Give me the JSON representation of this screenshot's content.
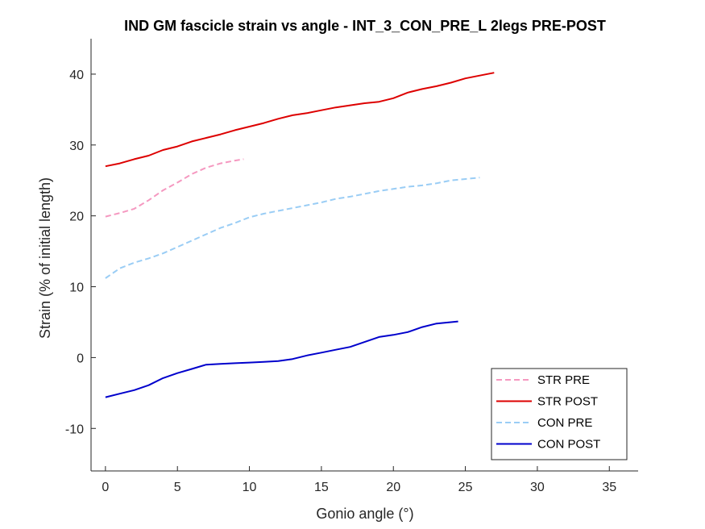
{
  "chart_data": {
    "type": "line",
    "title": "IND GM fascicle strain vs angle - INT_3_CON_PRE_L 2legs PRE-POST",
    "xlabel": "Gonio angle (°)",
    "ylabel": "Strain (% of initial length)",
    "xlim": [
      -1,
      37
    ],
    "ylim": [
      -16,
      45
    ],
    "xticks": [
      0,
      5,
      10,
      15,
      20,
      25,
      30,
      35
    ],
    "yticks": [
      -10,
      0,
      10,
      20,
      30,
      40
    ],
    "grid": false,
    "legend_position": "bottom-right",
    "series": [
      {
        "name": "STR PRE",
        "style": "dashed",
        "color": "#f598c0",
        "x": [
          0,
          1,
          2,
          3,
          4,
          5,
          6,
          7,
          8,
          9,
          9.6
        ],
        "y": [
          19.9,
          20.4,
          21.0,
          22.2,
          23.6,
          24.7,
          25.9,
          26.8,
          27.4,
          27.8,
          28.0
        ]
      },
      {
        "name": "STR POST",
        "style": "solid",
        "color": "#dd0000",
        "x": [
          0,
          1,
          2,
          3,
          4,
          5,
          6,
          7,
          8,
          9,
          10,
          11,
          12,
          13,
          14,
          15,
          16,
          17,
          18,
          19,
          20,
          21,
          22,
          23,
          24,
          25,
          26,
          27
        ],
        "y": [
          27.0,
          27.4,
          28.0,
          28.5,
          29.3,
          29.8,
          30.5,
          31.0,
          31.5,
          32.1,
          32.6,
          33.1,
          33.7,
          34.2,
          34.5,
          34.9,
          35.3,
          35.6,
          35.9,
          36.1,
          36.6,
          37.4,
          37.9,
          38.3,
          38.8,
          39.4,
          39.8,
          40.2
        ]
      },
      {
        "name": "CON PRE",
        "style": "dashed",
        "color": "#9acdf5",
        "x": [
          0,
          1,
          2,
          3,
          4,
          5,
          6,
          7,
          8,
          9,
          10,
          11,
          12,
          13,
          14,
          15,
          16,
          17,
          18,
          19,
          20,
          21,
          22,
          23,
          24,
          25,
          26
        ],
        "y": [
          11.2,
          12.6,
          13.4,
          14.0,
          14.7,
          15.6,
          16.5,
          17.4,
          18.3,
          19.0,
          19.8,
          20.3,
          20.7,
          21.1,
          21.5,
          21.9,
          22.4,
          22.7,
          23.1,
          23.5,
          23.8,
          24.1,
          24.3,
          24.6,
          25.0,
          25.2,
          25.4
        ]
      },
      {
        "name": "CON POST",
        "style": "solid",
        "color": "#0000cc",
        "x": [
          0,
          1,
          2,
          3,
          4,
          5,
          6,
          7,
          8,
          9,
          10,
          11,
          12,
          13,
          14,
          15,
          16,
          17,
          18,
          19,
          20,
          21,
          22,
          23,
          24,
          24.5
        ],
        "y": [
          -5.6,
          -5.1,
          -4.6,
          -3.9,
          -2.9,
          -2.2,
          -1.6,
          -1.0,
          -0.9,
          -0.8,
          -0.7,
          -0.6,
          -0.5,
          -0.2,
          0.3,
          0.7,
          1.1,
          1.5,
          2.2,
          2.9,
          3.2,
          3.6,
          4.3,
          4.8,
          5.0,
          5.1
        ]
      }
    ]
  }
}
